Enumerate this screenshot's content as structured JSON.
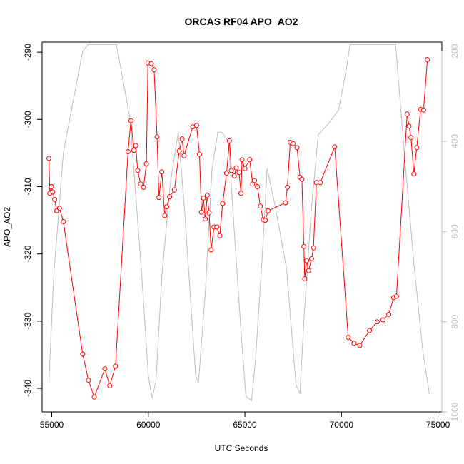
{
  "chart_data": {
    "type": "line",
    "title": "ORCAS RF04 APO_AO2",
    "xlabel": "UTC Seconds",
    "ylabel": "APO_AO2",
    "xlim": [
      54500,
      75200
    ],
    "ylim": [
      -343.5,
      -288.5
    ],
    "y2lim": [
      1000,
      180
    ],
    "y2_reversed": true,
    "x_ticks": [
      55000,
      60000,
      65000,
      70000,
      75000
    ],
    "x_tick_labels": [
      "55000",
      "60000",
      "65000",
      "70000",
      "75000"
    ],
    "y_ticks": [
      -340,
      -330,
      -320,
      -310,
      -300,
      -290
    ],
    "y_tick_labels": [
      "-340",
      "-330",
      "-320",
      "-310",
      "-300",
      "-290"
    ],
    "y2_ticks": [
      200,
      400,
      600,
      800,
      1000
    ],
    "y2_tick_labels": [
      "200",
      "400",
      "600",
      "800",
      "1000"
    ],
    "grid": false,
    "colors": {
      "apo": "#ff0000",
      "pressure": "#bdbdbd"
    },
    "series": [
      {
        "name": "",
        "axis": "left",
        "color": "#ff0000",
        "marker": "open-circle",
        "points": [
          [
            54850,
            -305.8
          ],
          [
            54900,
            -311.0
          ],
          [
            54980,
            -310.0
          ],
          [
            55050,
            -310.8
          ],
          [
            55150,
            -311.9
          ],
          [
            55250,
            -313.6
          ],
          [
            55400,
            -313.2
          ],
          [
            55600,
            -315.2
          ],
          [
            56600,
            -334.9
          ],
          [
            56900,
            -338.8
          ],
          [
            57200,
            -341.3
          ],
          [
            57750,
            -337.1
          ],
          [
            58000,
            -339.6
          ],
          [
            58300,
            -336.7
          ],
          [
            58950,
            -304.8
          ],
          [
            59100,
            -300.2
          ],
          [
            59250,
            -304.6
          ],
          [
            59350,
            -303.9
          ],
          [
            59450,
            -307.6
          ],
          [
            59600,
            -309.6
          ],
          [
            59750,
            -310.1
          ],
          [
            59900,
            -306.6
          ],
          [
            59980,
            -291.6
          ],
          [
            60150,
            -291.7
          ],
          [
            60300,
            -292.6
          ],
          [
            60450,
            -302.6
          ],
          [
            60550,
            -311.6
          ],
          [
            60700,
            -307.8
          ],
          [
            60850,
            -314.3
          ],
          [
            60950,
            -313.0
          ],
          [
            61100,
            -311.5
          ],
          [
            61350,
            -310.5
          ],
          [
            61600,
            -304.7
          ],
          [
            61750,
            -302.9
          ],
          [
            61850,
            -305.4
          ],
          [
            62300,
            -301.1
          ],
          [
            62500,
            -300.9
          ],
          [
            62650,
            -305.2
          ],
          [
            62750,
            -313.8
          ],
          [
            62850,
            -311.7
          ],
          [
            62950,
            -314.8
          ],
          [
            63050,
            -311.3
          ],
          [
            63150,
            -313.9
          ],
          [
            63250,
            -319.4
          ],
          [
            63400,
            -316.0
          ],
          [
            63550,
            -316.0
          ],
          [
            63700,
            -317.3
          ],
          [
            63850,
            -312.5
          ],
          [
            64050,
            -308.0
          ],
          [
            64200,
            -303.2
          ],
          [
            64300,
            -307.6
          ],
          [
            64450,
            -308.4
          ],
          [
            64550,
            -307.2
          ],
          [
            64700,
            -307.9
          ],
          [
            64800,
            -311.0
          ],
          [
            64850,
            -306.0
          ],
          [
            65000,
            -307.3
          ],
          [
            65250,
            -306.0
          ],
          [
            65400,
            -309.6
          ],
          [
            65500,
            -309.1
          ],
          [
            65650,
            -310.0
          ],
          [
            65800,
            -312.9
          ],
          [
            65950,
            -314.9
          ],
          [
            66050,
            -315.0
          ],
          [
            66200,
            -313.6
          ],
          [
            67100,
            -312.4
          ],
          [
            67200,
            -310.1
          ],
          [
            67350,
            -303.4
          ],
          [
            67500,
            -303.6
          ],
          [
            67700,
            -304.2
          ],
          [
            67850,
            -308.6
          ],
          [
            67950,
            -308.9
          ],
          [
            68050,
            -318.9
          ],
          [
            68100,
            -323.7
          ],
          [
            68200,
            -321.0
          ],
          [
            68300,
            -322.5
          ],
          [
            68450,
            -320.7
          ],
          [
            68550,
            -319.1
          ],
          [
            68700,
            -309.4
          ],
          [
            68900,
            -309.4
          ],
          [
            69650,
            -304.1
          ],
          [
            70350,
            -332.4
          ],
          [
            70650,
            -333.3
          ],
          [
            70950,
            -333.6
          ],
          [
            71450,
            -331.4
          ],
          [
            71850,
            -330.1
          ],
          [
            72150,
            -329.8
          ],
          [
            72450,
            -329.0
          ],
          [
            72700,
            -326.5
          ],
          [
            72850,
            -326.3
          ],
          [
            73400,
            -299.2
          ],
          [
            73500,
            -301.0
          ],
          [
            73600,
            -302.7
          ],
          [
            73750,
            -308.1
          ],
          [
            73900,
            -304.2
          ],
          [
            74100,
            -298.5
          ],
          [
            74250,
            -298.6
          ],
          [
            74450,
            -291.1
          ]
        ]
      },
      {
        "name": "",
        "axis": "right",
        "color": "#bdbdbd",
        "marker": "none",
        "points": [
          [
            54850,
            935
          ],
          [
            55100,
            700
          ],
          [
            55600,
            425
          ],
          [
            56600,
            200
          ],
          [
            56900,
            185
          ],
          [
            58350,
            185
          ],
          [
            59050,
            350
          ],
          [
            59650,
            690
          ],
          [
            60000,
            920
          ],
          [
            60200,
            970
          ],
          [
            60400,
            930
          ],
          [
            60700,
            700
          ],
          [
            61150,
            490
          ],
          [
            61550,
            380
          ],
          [
            61900,
            565
          ],
          [
            62450,
            920
          ],
          [
            62600,
            935
          ],
          [
            62950,
            735
          ],
          [
            63300,
            460
          ],
          [
            63600,
            380
          ],
          [
            63800,
            380
          ],
          [
            64150,
            400
          ],
          [
            64450,
            600
          ],
          [
            64800,
            820
          ],
          [
            65050,
            965
          ],
          [
            65350,
            975
          ],
          [
            65550,
            885
          ],
          [
            65900,
            655
          ],
          [
            66150,
            460
          ],
          [
            66550,
            540
          ],
          [
            67150,
            680
          ],
          [
            67650,
            940
          ],
          [
            67850,
            960
          ],
          [
            68050,
            800
          ],
          [
            68450,
            545
          ],
          [
            68800,
            385
          ],
          [
            69350,
            360
          ],
          [
            69850,
            330
          ],
          [
            70250,
            240
          ],
          [
            70450,
            185
          ],
          [
            72800,
            185
          ],
          [
            73300,
            450
          ],
          [
            73750,
            670
          ],
          [
            74200,
            860
          ],
          [
            74550,
            960
          ]
        ]
      }
    ]
  }
}
